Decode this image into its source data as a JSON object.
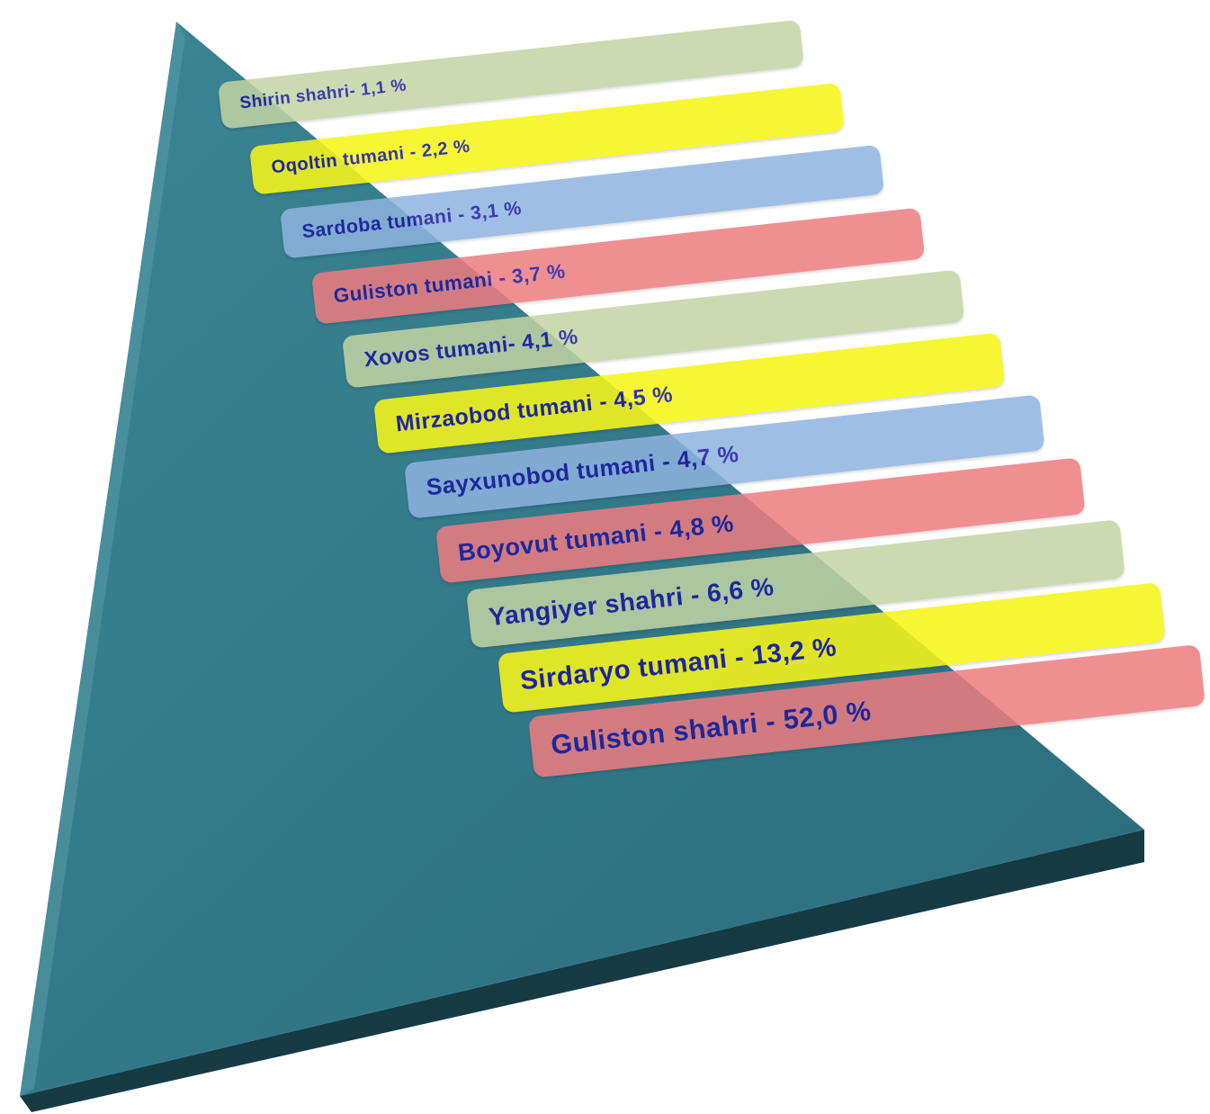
{
  "colors": {
    "pyramid_front": "#337787",
    "pyramid_side": "#1c4a55",
    "pyramid_bottom": "#163b44",
    "text": "#1a1aa0"
  },
  "bars": [
    {
      "label": "Shirin shahri- 1,1 %",
      "value": 1.1,
      "color": "#c2d4a4",
      "opacity": 0.85
    },
    {
      "label": "Oqoltin tumani - 2,2 %",
      "value": 2.2,
      "color": "#f7f51a",
      "opacity": 0.88
    },
    {
      "label": "Sardoba tumani - 3,1 %",
      "value": 3.1,
      "color": "#8fb3e0",
      "opacity": 0.85
    },
    {
      "label": "Guliston tumani - 3,7 %",
      "value": 3.7,
      "color": "#ee7c80",
      "opacity": 0.85
    },
    {
      "label": "Xovos tumani- 4,1 %",
      "value": 4.1,
      "color": "#c2d4a4",
      "opacity": 0.85
    },
    {
      "label": "Mirzaobod tumani - 4,5 %",
      "value": 4.5,
      "color": "#f7f51a",
      "opacity": 0.88
    },
    {
      "label": "Sayxunobod tumani - 4,7 %",
      "value": 4.7,
      "color": "#8fb3e0",
      "opacity": 0.85
    },
    {
      "label": "Boyovut tumani - 4,8 %",
      "value": 4.8,
      "color": "#ee7c80",
      "opacity": 0.85
    },
    {
      "label": "Yangiyer shahri - 6,6 %",
      "value": 6.6,
      "color": "#c2d4a4",
      "opacity": 0.85
    },
    {
      "label": "Sirdaryo tumani - 13,2 %",
      "value": 13.2,
      "color": "#f7f51a",
      "opacity": 0.88
    },
    {
      "label": "Guliston shahri - 52,0 %",
      "value": 52.0,
      "color": "#ee7c80",
      "opacity": 0.85
    }
  ]
}
